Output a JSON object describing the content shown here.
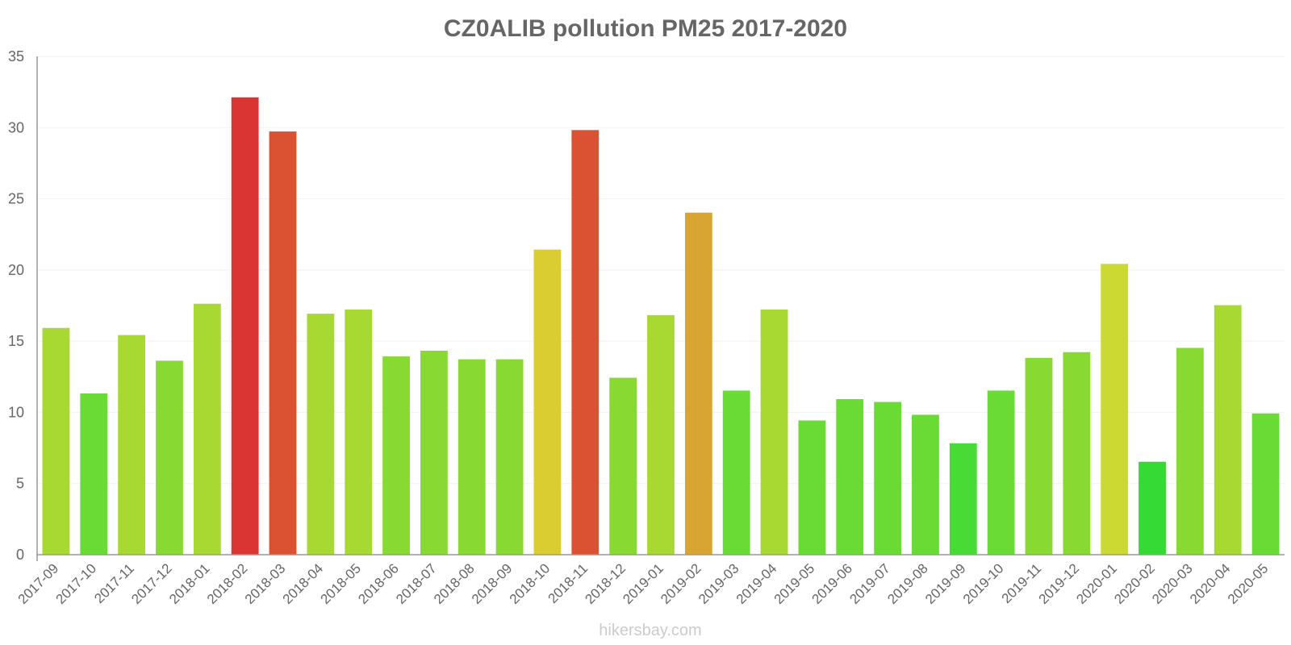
{
  "watermark": "hikersbay.com",
  "chart_data": {
    "type": "bar",
    "title": "CZ0ALIB pollution PM25 2017-2020",
    "xlabel": "",
    "ylabel": "",
    "ylim": [
      0,
      35
    ],
    "yticks": [
      "0",
      "5",
      "10",
      "15",
      "20",
      "25",
      "30",
      "35"
    ],
    "grid": true,
    "categories": [
      "2017-09",
      "2017-10",
      "2017-11",
      "2017-12",
      "2018-01",
      "2018-02",
      "2018-03",
      "2018-04",
      "2018-05",
      "2018-06",
      "2018-07",
      "2018-08",
      "2018-09",
      "2018-10",
      "2018-11",
      "2018-12",
      "2019-01",
      "2019-02",
      "2019-03",
      "2019-04",
      "2019-05",
      "2019-06",
      "2019-07",
      "2019-08",
      "2019-09",
      "2019-10",
      "2019-11",
      "2019-12",
      "2020-01",
      "2020-02",
      "2020-03",
      "2020-04",
      "2020-05"
    ],
    "values": [
      15.9,
      11.3,
      15.4,
      13.6,
      17.6,
      32.1,
      29.7,
      16.9,
      17.2,
      13.9,
      14.3,
      13.7,
      13.7,
      21.4,
      29.8,
      12.4,
      16.8,
      24.0,
      11.5,
      17.2,
      9.4,
      10.9,
      10.7,
      9.8,
      7.8,
      11.5,
      13.8,
      14.2,
      20.4,
      6.5,
      14.5,
      17.5,
      9.9
    ],
    "colors": [
      "#a8d932",
      "#6adb35",
      "#a8d932",
      "#88da33",
      "#a8d932",
      "#da3532",
      "#db5233",
      "#a8d932",
      "#a8d932",
      "#88da33",
      "#88da33",
      "#88da33",
      "#88da33",
      "#d9cd32",
      "#db5233",
      "#88da33",
      "#a8d932",
      "#d9a532",
      "#6adb35",
      "#a8d932",
      "#6adb35",
      "#6adb35",
      "#6adb35",
      "#6adb35",
      "#49db35",
      "#6adb35",
      "#88da33",
      "#88da33",
      "#cbd932",
      "#35da35",
      "#88da33",
      "#a8d932",
      "#6adb35"
    ]
  }
}
